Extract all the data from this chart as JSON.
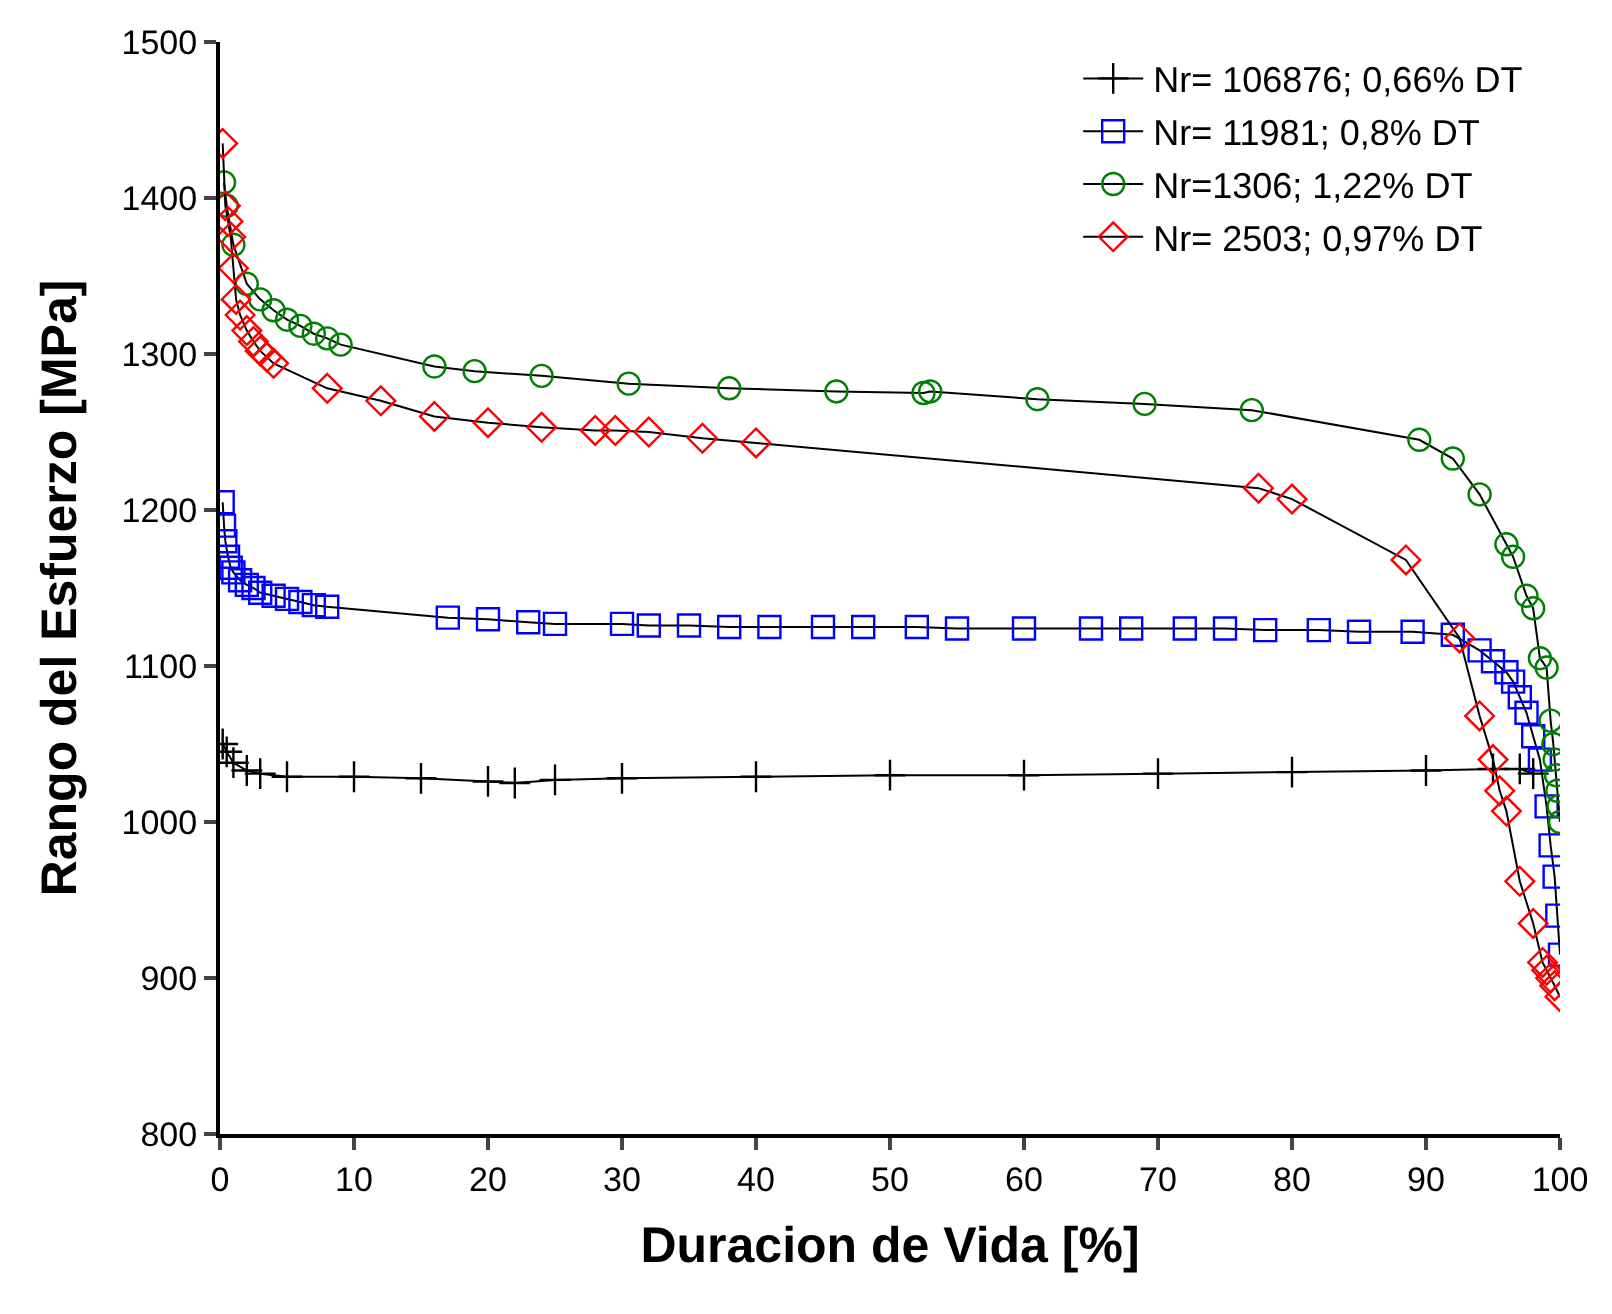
{
  "chart_data": {
    "type": "line",
    "xlabel": "Duracion de Vida [%]",
    "ylabel": "Rango del Esfuerzo [MPa]",
    "xlim": [
      0,
      100
    ],
    "xticks": [
      0,
      10,
      20,
      30,
      40,
      50,
      60,
      70,
      80,
      90,
      100
    ],
    "ylim": [
      800,
      1500
    ],
    "yticks": [
      800,
      900,
      1000,
      1100,
      1200,
      1300,
      1400,
      1500
    ],
    "legend": "top right",
    "series": [
      {
        "name": "Nr= 106876; 0,66% DT",
        "color": "#000000",
        "marker": "cross",
        "x": [
          0.2,
          0.5,
          1,
          2,
          3,
          5,
          10,
          15,
          20,
          22,
          25,
          30,
          40,
          50,
          60,
          70,
          80,
          90,
          95,
          97,
          98
        ],
        "values": [
          1050,
          1045,
          1038,
          1033,
          1031,
          1029,
          1029,
          1028,
          1026,
          1025,
          1027,
          1028,
          1029,
          1030,
          1030,
          1031,
          1032,
          1033,
          1034,
          1034,
          1031
        ]
      },
      {
        "name": "Nr= 11981; 0,8% DT",
        "color": "#0000ff",
        "marker": "square",
        "x": [
          0.2,
          0.3,
          0.4,
          0.6,
          0.8,
          1,
          1.5,
          2,
          2.5,
          3,
          4,
          5,
          6,
          7,
          8,
          17,
          20,
          23,
          25,
          30,
          32,
          35,
          38,
          41,
          45,
          48,
          52,
          55,
          60,
          65,
          68,
          72,
          75,
          78,
          82,
          85,
          89,
          92,
          94,
          95,
          96,
          96.5,
          97,
          97.5,
          98,
          98.5,
          99,
          99.3,
          99.6,
          99.8,
          100
        ],
        "values": [
          1205,
          1190,
          1180,
          1170,
          1163,
          1160,
          1155,
          1152,
          1150,
          1147,
          1145,
          1143,
          1141,
          1139,
          1138,
          1131,
          1130,
          1128,
          1127,
          1127,
          1126,
          1126,
          1125,
          1125,
          1125,
          1125,
          1125,
          1124,
          1124,
          1124,
          1124,
          1124,
          1124,
          1123,
          1123,
          1122,
          1122,
          1120,
          1110,
          1103,
          1096,
          1090,
          1080,
          1070,
          1055,
          1040,
          1010,
          985,
          965,
          940,
          915
        ]
      },
      {
        "name": "Nr=1306; 1,22% DT",
        "color": "#008000",
        "marker": "circle",
        "x": [
          0.3,
          0.5,
          1,
          2,
          3,
          4,
          5,
          6,
          7,
          8,
          9,
          16,
          19,
          24,
          30.5,
          38,
          46,
          52.5,
          53,
          61,
          69,
          77,
          89.5,
          92,
          94,
          96,
          96.5,
          97.5,
          98,
          98.5,
          99,
          99.3,
          99.5,
          99.6,
          99.7,
          99.8,
          99.9,
          100
        ],
        "values": [
          1410,
          1395,
          1370,
          1345,
          1335,
          1328,
          1322,
          1318,
          1313,
          1310,
          1306,
          1292,
          1289,
          1286,
          1281,
          1278,
          1276,
          1275,
          1276,
          1271,
          1268,
          1264,
          1245,
          1233,
          1210,
          1178,
          1170,
          1145,
          1137,
          1105,
          1099,
          1065,
          1050,
          1040,
          1030,
          1020,
          1010,
          1000
        ]
      },
      {
        "name": "Nr= 2503; 0,97% DT",
        "color": "#ff0000",
        "marker": "diamond",
        "x": [
          0.2,
          0.4,
          0.6,
          0.8,
          1,
          1.2,
          1.5,
          2,
          2.5,
          3,
          3.5,
          4,
          8,
          12,
          16,
          20,
          24,
          28,
          29.5,
          32,
          36,
          40,
          77.5,
          80,
          88.5,
          92.5,
          94,
          95,
          95.5,
          96,
          97,
          98,
          98.7,
          99,
          99.3,
          99.6,
          100
        ],
        "values": [
          1435,
          1395,
          1385,
          1375,
          1355,
          1335,
          1325,
          1315,
          1308,
          1302,
          1298,
          1294,
          1278,
          1270,
          1260,
          1256,
          1253,
          1251,
          1251,
          1250,
          1246,
          1243,
          1214,
          1207,
          1168,
          1118,
          1068,
          1040,
          1020,
          1007,
          962,
          935,
          910,
          905,
          900,
          895,
          888
        ]
      }
    ]
  }
}
